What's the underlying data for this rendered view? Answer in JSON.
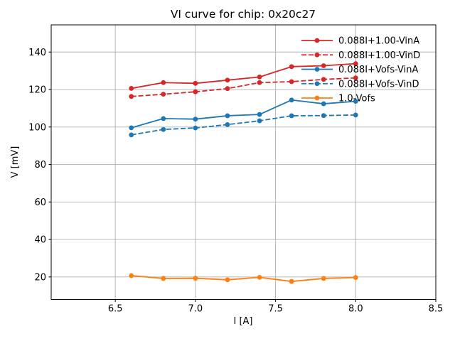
{
  "figure": {
    "kind": "matplotlib-line-plot"
  },
  "chart_data": {
    "type": "line",
    "title": "VI curve for chip: 0x20c27",
    "xlabel": "I [A]",
    "ylabel": "V [mV]",
    "xlim": [
      6.1,
      8.5
    ],
    "ylim": [
      8,
      154.5
    ],
    "xticks": [
      6.5,
      7.0,
      7.5,
      8.0,
      8.5
    ],
    "xtick_labels": [
      "6.5",
      "7.0",
      "7.5",
      "8.0",
      "8.5"
    ],
    "yticks": [
      20,
      40,
      60,
      80,
      100,
      120,
      140
    ],
    "ytick_labels": [
      "20",
      "40",
      "60",
      "80",
      "100",
      "120",
      "140"
    ],
    "grid": true,
    "legend_position": "upper right",
    "x": [
      6.6,
      6.8,
      7.0,
      7.2,
      7.4,
      7.6,
      7.8,
      8.0
    ],
    "series": [
      {
        "name": "0.088I+1.00-VinA",
        "color": "#d62728",
        "linestyle": "solid",
        "marker": "circle",
        "values": [
          120.6,
          123.7,
          123.3,
          125.0,
          126.7,
          132.2,
          132.7,
          133.8
        ]
      },
      {
        "name": "0.088I+1.00-VinD",
        "color": "#d62728",
        "linestyle": "dashed",
        "marker": "circle",
        "values": [
          116.3,
          117.5,
          118.8,
          120.5,
          123.7,
          124.2,
          125.4,
          126.2
        ]
      },
      {
        "name": "0.088I+Vofs-VinA",
        "color": "#1f77b4",
        "linestyle": "solid",
        "marker": "circle",
        "values": [
          99.6,
          104.5,
          104.2,
          106.0,
          106.7,
          114.4,
          112.4,
          113.7
        ]
      },
      {
        "name": "0.088I+Vofs-VinD",
        "color": "#1f77b4",
        "linestyle": "dashed",
        "marker": "circle",
        "values": [
          95.8,
          98.7,
          99.5,
          101.3,
          103.3,
          106.0,
          106.1,
          106.4
        ]
      },
      {
        "name": "1.0-Vofs",
        "color": "#ff7f0e",
        "linestyle": "solid",
        "marker": "circle",
        "values": [
          20.7,
          19.2,
          19.3,
          18.5,
          19.8,
          17.6,
          19.2,
          19.7
        ]
      }
    ],
    "colors": {
      "grid": "#b0b0b0",
      "axes_edge": "#000000",
      "background": "#ffffff"
    }
  }
}
